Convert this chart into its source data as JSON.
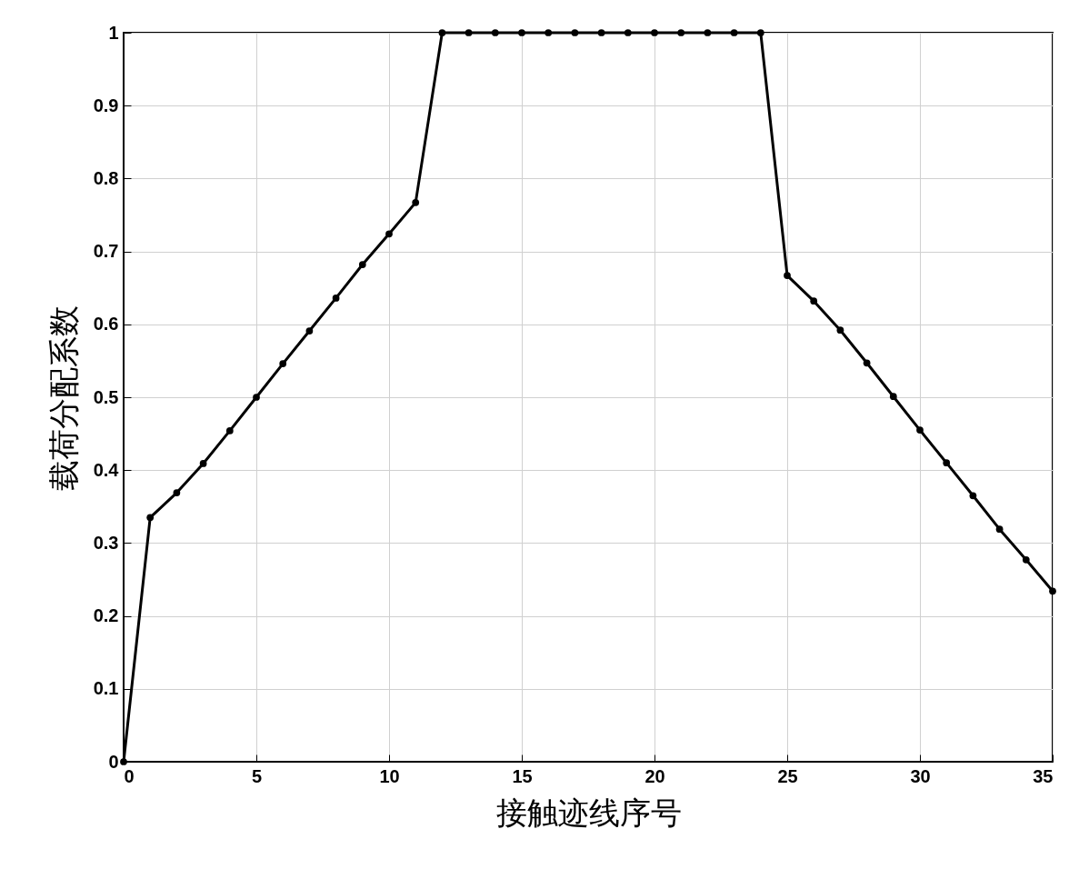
{
  "chart_data": {
    "type": "line",
    "xlabel": "接触迹线序号",
    "ylabel": "载荷分配系数",
    "x": [
      0,
      1,
      2,
      3,
      4,
      5,
      6,
      7,
      8,
      9,
      10,
      11,
      12,
      13,
      14,
      15,
      16,
      17,
      18,
      19,
      20,
      21,
      22,
      23,
      24,
      25,
      26,
      27,
      28,
      29,
      30,
      31,
      32,
      33,
      34,
      35
    ],
    "series": [
      {
        "color": "#000000",
        "values": [
          0,
          0.335,
          0.369,
          0.409,
          0.454,
          0.5,
          0.546,
          0.591,
          0.636,
          0.682,
          0.724,
          0.767,
          1,
          1,
          1,
          1,
          1,
          1,
          1,
          1,
          1,
          1,
          1,
          1,
          1,
          0.667,
          0.632,
          0.592,
          0.547,
          0.501,
          0.455,
          0.41,
          0.365,
          0.319,
          0.277,
          0.234
        ]
      }
    ],
    "xlim": [
      0,
      35
    ],
    "xticks": [
      0,
      5,
      10,
      15,
      20,
      25,
      30,
      35
    ],
    "ylim": [
      0,
      1
    ],
    "yticks": [
      0,
      0.1,
      0.2,
      0.3,
      0.4,
      0.5,
      0.6,
      0.7,
      0.8,
      0.9,
      1
    ],
    "grid": true,
    "marker": "circle",
    "line_style": "solid",
    "legend": false
  }
}
